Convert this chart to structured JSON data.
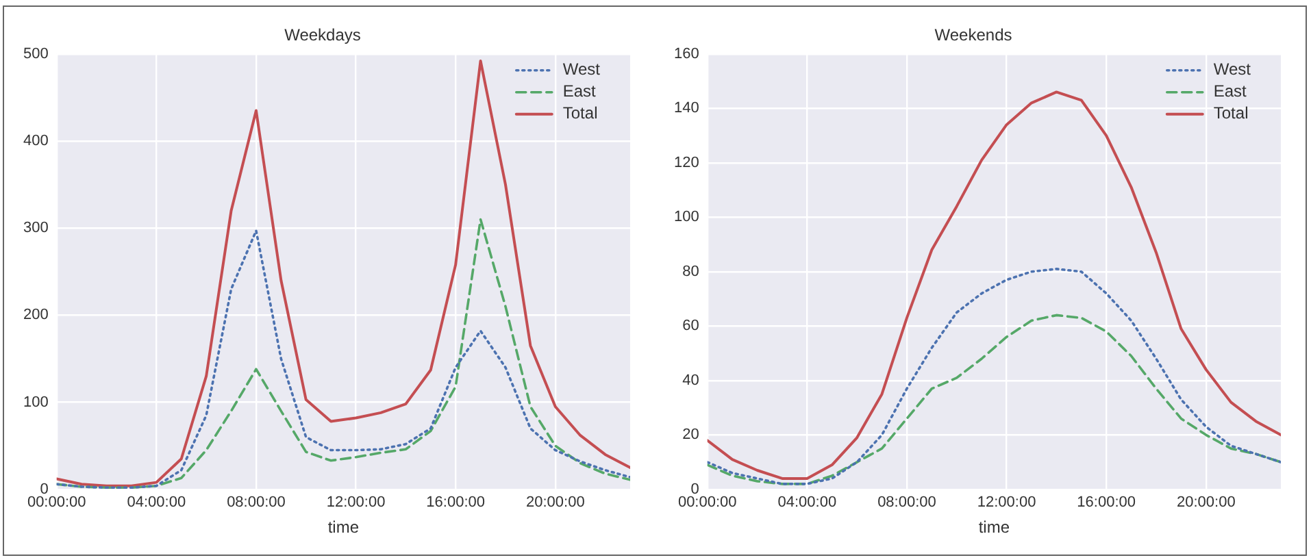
{
  "chart_data": [
    {
      "type": "line",
      "title": "Weekdays",
      "xlabel": "time",
      "x": [
        0,
        1,
        2,
        3,
        4,
        5,
        6,
        7,
        8,
        9,
        10,
        11,
        12,
        13,
        14,
        15,
        16,
        17,
        18,
        19,
        20,
        21,
        22,
        23
      ],
      "xlim": [
        0,
        23
      ],
      "xticks": [
        {
          "value": 0,
          "label": "00:00:00"
        },
        {
          "value": 4,
          "label": "04:00:00"
        },
        {
          "value": 8,
          "label": "08:00:00"
        },
        {
          "value": 12,
          "label": "12:00:00"
        },
        {
          "value": 16,
          "label": "16:00:00"
        },
        {
          "value": 20,
          "label": "20:00:00"
        }
      ],
      "ylim": [
        0,
        500
      ],
      "yticks": [
        0,
        100,
        200,
        300,
        400,
        500
      ],
      "grid": true,
      "legend": "top right",
      "marker": "none",
      "series": [
        {
          "name": "West",
          "color": "#4c72b0",
          "line_style": "dotted",
          "values": [
            6,
            3,
            2,
            2,
            4,
            22,
            85,
            230,
            297,
            150,
            60,
            45,
            45,
            46,
            52,
            70,
            140,
            182,
            140,
            70,
            45,
            32,
            22,
            14
          ]
        },
        {
          "name": "East",
          "color": "#55a868",
          "line_style": "dashed",
          "values": [
            6,
            3,
            2,
            2,
            4,
            13,
            45,
            90,
            138,
            90,
            43,
            33,
            37,
            42,
            46,
            67,
            118,
            310,
            210,
            95,
            50,
            30,
            18,
            11
          ]
        },
        {
          "name": "Total",
          "color": "#c44e52",
          "line_style": "solid",
          "values": [
            12,
            6,
            4,
            4,
            8,
            35,
            130,
            320,
            435,
            240,
            103,
            78,
            82,
            88,
            98,
            137,
            258,
            492,
            350,
            165,
            95,
            62,
            40,
            25
          ]
        }
      ]
    },
    {
      "type": "line",
      "title": "Weekends",
      "xlabel": "time",
      "x": [
        0,
        1,
        2,
        3,
        4,
        5,
        6,
        7,
        8,
        9,
        10,
        11,
        12,
        13,
        14,
        15,
        16,
        17,
        18,
        19,
        20,
        21,
        22,
        23
      ],
      "xlim": [
        0,
        23
      ],
      "xticks": [
        {
          "value": 0,
          "label": "00:00:00"
        },
        {
          "value": 4,
          "label": "04:00:00"
        },
        {
          "value": 8,
          "label": "08:00:00"
        },
        {
          "value": 12,
          "label": "12:00:00"
        },
        {
          "value": 16,
          "label": "16:00:00"
        },
        {
          "value": 20,
          "label": "20:00:00"
        }
      ],
      "ylim": [
        0,
        160
      ],
      "yticks": [
        0,
        20,
        40,
        60,
        80,
        100,
        120,
        140,
        160
      ],
      "grid": true,
      "legend": "top right",
      "marker": "none",
      "series": [
        {
          "name": "West",
          "color": "#4c72b0",
          "line_style": "dotted",
          "values": [
            10,
            6,
            4,
            2,
            2,
            4,
            10,
            20,
            37,
            52,
            65,
            72,
            77,
            80,
            81,
            80,
            72,
            62,
            48,
            33,
            23,
            16,
            13,
            10
          ]
        },
        {
          "name": "East",
          "color": "#55a868",
          "line_style": "dashed",
          "values": [
            9,
            5,
            3,
            2,
            2,
            5,
            10,
            15,
            26,
            37,
            41,
            48,
            56,
            62,
            64,
            63,
            58,
            49,
            37,
            26,
            20,
            15,
            13,
            10
          ]
        },
        {
          "name": "Total",
          "color": "#c44e52",
          "line_style": "solid",
          "values": [
            18,
            11,
            7,
            4,
            4,
            9,
            19,
            35,
            63,
            88,
            104,
            121,
            134,
            142,
            146,
            143,
            130,
            111,
            87,
            59,
            44,
            32,
            25,
            20
          ]
        }
      ]
    }
  ]
}
